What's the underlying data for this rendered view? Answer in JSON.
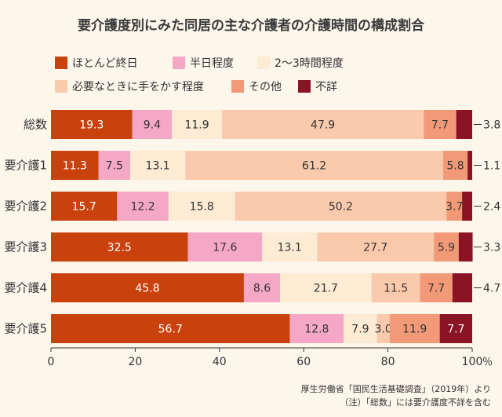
{
  "chart_data": {
    "type": "bar",
    "orientation": "horizontal",
    "stacked": true,
    "title": "要介護度別にみた同居の主な介護者の介護時間の構成割合",
    "categories": [
      "総数",
      "要介護1",
      "要介護2",
      "要介護3",
      "要介護4",
      "要介護5"
    ],
    "series": [
      {
        "name": "ほとんど終日",
        "color": "#c9420e",
        "values": [
          19.3,
          11.3,
          15.7,
          32.5,
          45.8,
          56.7
        ],
        "labels": [
          "19.3",
          "11.3",
          "15.7",
          "32.5",
          "45.8",
          "56.7"
        ]
      },
      {
        "name": "半日程度",
        "color": "#f5a8c6",
        "values": [
          9.4,
          7.5,
          12.2,
          17.6,
          8.6,
          12.8
        ],
        "labels": [
          "9.4",
          "7.5",
          "12.2",
          "17.6",
          "8.6",
          "12.8"
        ]
      },
      {
        "name": "2～3時間程度",
        "color": "#fdebd3",
        "values": [
          11.9,
          13.1,
          15.8,
          13.1,
          21.7,
          7.9
        ],
        "labels": [
          "11.9",
          "13.1",
          "15.8",
          "13.1",
          "21.7",
          "7.9"
        ]
      },
      {
        "name": "必要なときに手をかす程度",
        "color": "#fbc9ac",
        "values": [
          47.9,
          61.2,
          50.2,
          27.7,
          11.5,
          3.0
        ],
        "labels": [
          "47.9",
          "61.2",
          "50.2",
          "27.7",
          "11.5",
          "3.0"
        ]
      },
      {
        "name": "その他",
        "color": "#f29a78",
        "values": [
          7.7,
          5.8,
          3.7,
          5.9,
          7.7,
          11.9
        ],
        "labels": [
          "7.7",
          "5.8",
          "3.7",
          "5.9",
          "7.7",
          "11.9"
        ]
      },
      {
        "name": "不詳",
        "color": "#8b1424",
        "values": [
          3.8,
          1.1,
          2.4,
          3.3,
          4.7,
          7.7
        ],
        "labels": [
          "3.8",
          "1.1",
          "2.4",
          "3.3",
          "4.7",
          "7.7"
        ]
      }
    ],
    "outside_labels": [
      "3.8",
      "1.1",
      "2.4",
      "3.3",
      "4.7",
      ""
    ],
    "x_ticks": [
      "0",
      "20",
      "40",
      "60",
      "80",
      "100"
    ],
    "x_unit": "％",
    "xlim": [
      0,
      100
    ],
    "legend_position": "top",
    "grid": false
  },
  "source_note": "厚生労働省「国民生活基礎調査」（2019年）より",
  "footnote": "（注）「総数」には要介護度不詳を含む"
}
